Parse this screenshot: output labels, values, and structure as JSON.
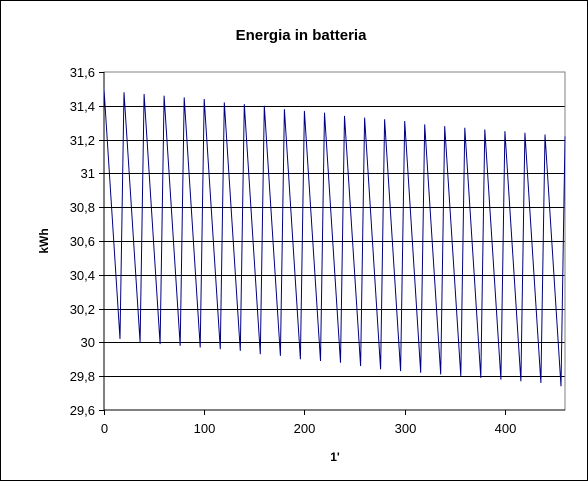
{
  "chart_data": {
    "type": "line",
    "title": "Energia in batteria",
    "xlabel": "1'",
    "ylabel": "kWh",
    "xlim": [
      0,
      460
    ],
    "ylim": [
      29.6,
      31.6
    ],
    "x_ticks": [
      0,
      100,
      200,
      300,
      400
    ],
    "x_tick_labels": [
      "0",
      "100",
      "200",
      "300",
      "400"
    ],
    "y_ticks": [
      29.6,
      29.8,
      30,
      30.2,
      30.4,
      30.6,
      30.8,
      31,
      31.2,
      31.4,
      31.6
    ],
    "y_tick_labels": [
      "29,6",
      "29,8",
      "30",
      "30,2",
      "30,4",
      "30,6",
      "30,8",
      "31",
      "31,2",
      "31,4",
      "31,6"
    ],
    "grid": "horizontal",
    "legend": "none",
    "line_color": "#000080",
    "series": [
      {
        "x": [
          0,
          16,
          20,
          36,
          40,
          56,
          60,
          76,
          80,
          96,
          100,
          116,
          120,
          136,
          140,
          156,
          160,
          176,
          180,
          196,
          200,
          216,
          220,
          236,
          240,
          256,
          260,
          276,
          280,
          296,
          300,
          316,
          320,
          336,
          340,
          356,
          360,
          376,
          380,
          396,
          400,
          416,
          420,
          436,
          440,
          456,
          460
        ],
        "y": [
          31.5,
          30.02,
          31.48,
          30.0,
          31.47,
          29.99,
          31.46,
          29.98,
          31.45,
          29.97,
          31.44,
          29.96,
          31.42,
          29.95,
          31.41,
          29.93,
          31.4,
          29.92,
          31.38,
          29.9,
          31.37,
          29.89,
          31.36,
          29.88,
          31.34,
          29.86,
          31.33,
          29.84,
          31.32,
          29.83,
          31.31,
          29.82,
          31.29,
          29.81,
          31.28,
          29.8,
          31.27,
          29.79,
          31.26,
          29.78,
          31.25,
          29.77,
          31.24,
          29.76,
          31.23,
          29.74,
          31.22
        ]
      }
    ]
  }
}
